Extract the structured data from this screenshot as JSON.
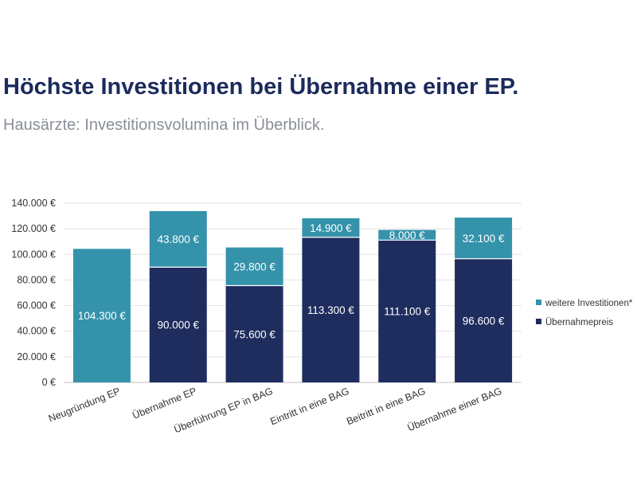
{
  "header": {
    "title": "Höchste Investitionen bei Übernahme einer EP.",
    "subtitle": "Hausärzte: Investitionsvolumina im Überblick."
  },
  "chart_data": {
    "type": "bar",
    "stacked": true,
    "categories": [
      "Neugründung EP",
      "Übernahme EP",
      "Überführung EP in BAG",
      "Eintritt in eine BAG",
      "Beitritt in eine BAG",
      "Übernahme einer BAG"
    ],
    "series": [
      {
        "name": "Übernahmepreis",
        "color": "#1e2d5e",
        "values": [
          null,
          90000,
          75600,
          113300,
          111100,
          96600
        ],
        "labels": [
          "",
          "90.000 €",
          "75.600 €",
          "113.300 €",
          "111.100 €",
          "96.600 €"
        ]
      },
      {
        "name": "weitere Investitionen*",
        "color": "#3592ab",
        "values": [
          104300,
          43800,
          29800,
          14900,
          8000,
          32100
        ],
        "labels": [
          "104.300 €",
          "43.800 €",
          "29.800 €",
          "14.900 €",
          "8.000 €",
          "32.100 €"
        ]
      }
    ],
    "ylim": [
      0,
      140000
    ],
    "yticks": [
      0,
      20000,
      40000,
      60000,
      80000,
      100000,
      120000,
      140000
    ],
    "ytick_labels": [
      "0 €",
      "20.000 €",
      "40.000 €",
      "60.000 €",
      "80.000 €",
      "100.000 €",
      "120.000 €",
      "140.000 €"
    ],
    "grid": true,
    "legend": "right",
    "xlabel": "",
    "ylabel": ""
  }
}
